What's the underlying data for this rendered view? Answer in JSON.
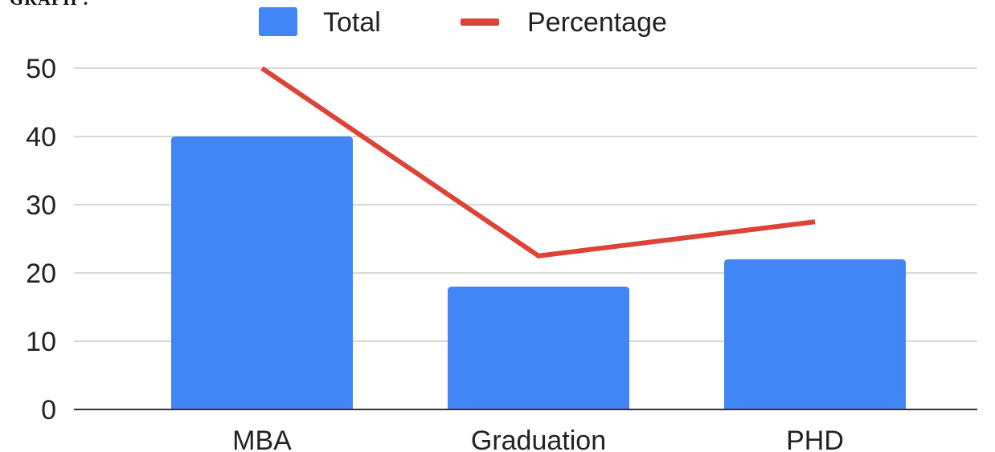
{
  "page": {
    "heading": "GRAPH :"
  },
  "chart_data": {
    "type": "bar",
    "categories": [
      "MBA",
      "Graduation",
      "PHD"
    ],
    "series": [
      {
        "name": "Total",
        "type": "bar",
        "color": "#4285f4",
        "values": [
          40,
          18,
          22
        ]
      },
      {
        "name": "Percentage",
        "type": "line",
        "color": "#db4437",
        "values": [
          50,
          22.5,
          27.5
        ]
      }
    ],
    "title": "",
    "xlabel": "",
    "ylabel": "",
    "ylim": [
      0,
      50
    ],
    "yticks": [
      0,
      10,
      20,
      30,
      40,
      50
    ],
    "grid": true,
    "legend": "top-center"
  }
}
